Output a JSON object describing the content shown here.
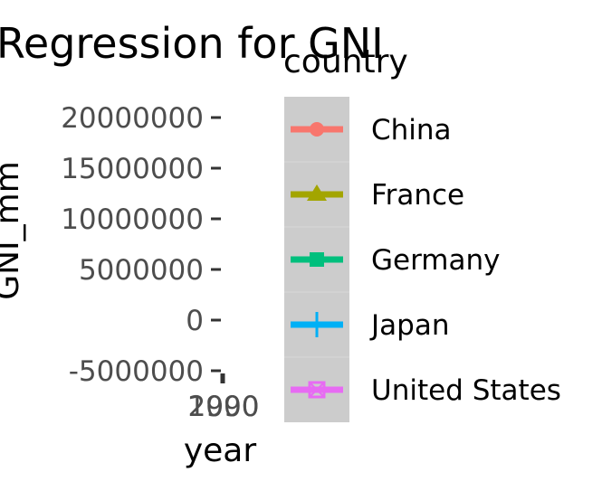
{
  "chart_data": {
    "type": "line",
    "title": "Regression for GNI",
    "xlabel": "year",
    "ylabel": "GNI_mm",
    "y_ticks": [
      20000000,
      15000000,
      10000000,
      5000000,
      0,
      -5000000
    ],
    "y_tick_labels": [
      "20000000",
      "15000000",
      "10000000",
      "5000000",
      "0",
      "-5000000"
    ],
    "x_tick_labels": [
      "1990",
      "2000"
    ],
    "ylim": [
      -5000000,
      20000000
    ],
    "grid": false,
    "legend": {
      "title": "country",
      "placement": "right",
      "entries": [
        {
          "name": "China",
          "color": "#F8766D",
          "shape": "circle"
        },
        {
          "name": "France",
          "color": "#A3A500",
          "shape": "triangle"
        },
        {
          "name": "Germany",
          "color": "#00BF7D",
          "shape": "square"
        },
        {
          "name": "Japan",
          "color": "#00B0F6",
          "shape": "plus"
        },
        {
          "name": "United States",
          "color": "#E76BF3",
          "shape": "square-cross"
        }
      ]
    }
  }
}
